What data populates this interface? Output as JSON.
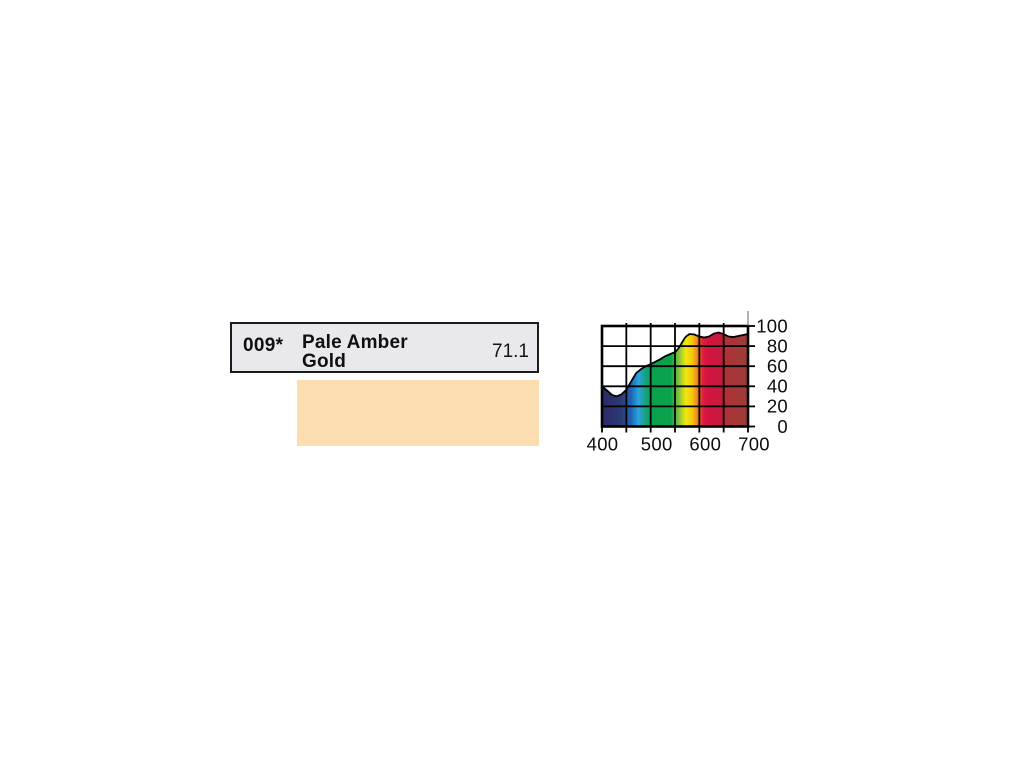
{
  "page": {
    "background": "#ffffff"
  },
  "swatch_card": {
    "code": "009*",
    "name": "Pale Amber Gold",
    "name_lines": [
      "Pale Amber",
      "Gold"
    ],
    "transmission_percent": "71.1",
    "header_background": "#e9e9ed",
    "swatch_color": "#fcddb0"
  },
  "chart_data": {
    "type": "area",
    "x": [
      400,
      410,
      420,
      430,
      440,
      450,
      460,
      470,
      480,
      490,
      500,
      510,
      520,
      530,
      540,
      550,
      555,
      560,
      565,
      570,
      575,
      580,
      590,
      600,
      610,
      620,
      630,
      640,
      650,
      660,
      670,
      680,
      690,
      700
    ],
    "values": [
      40,
      36,
      31.5,
      30,
      32,
      36.5,
      45,
      53,
      57,
      60,
      62,
      64.5,
      67,
      70,
      72,
      74,
      76.5,
      80,
      84,
      88,
      90.5,
      92,
      91.5,
      89.5,
      88.5,
      89.5,
      92.5,
      93.5,
      92,
      89.5,
      89,
      90,
      91,
      92
    ],
    "xlim": [
      400,
      700
    ],
    "ylim": [
      0,
      100
    ],
    "xticks": [
      400,
      500,
      600,
      700
    ],
    "xtick_labels": [
      "400",
      "500",
      "600",
      "700"
    ],
    "xticks_minor": [
      450,
      550,
      650
    ],
    "yticks": [
      0,
      20,
      40,
      60,
      80,
      100
    ],
    "ytick_labels": [
      "0",
      "20",
      "40",
      "60",
      "80",
      "100"
    ],
    "grid": true,
    "legend": false,
    "fill": "spectrum",
    "line_color": "#000000",
    "spectrum_stops": [
      {
        "offset": 0.0,
        "color": "#2b2968"
      },
      {
        "offset": 0.13,
        "color": "#2c3a74"
      },
      {
        "offset": 0.2,
        "color": "#1e66b4"
      },
      {
        "offset": 0.25,
        "color": "#28a5de"
      },
      {
        "offset": 0.3,
        "color": "#17a07c"
      },
      {
        "offset": 0.34,
        "color": "#09a14f"
      },
      {
        "offset": 0.47,
        "color": "#0ba24b"
      },
      {
        "offset": 0.53,
        "color": "#8ec43a"
      },
      {
        "offset": 0.575,
        "color": "#f2e90c"
      },
      {
        "offset": 0.62,
        "color": "#f4c40e"
      },
      {
        "offset": 0.655,
        "color": "#ee7f1d"
      },
      {
        "offset": 0.69,
        "color": "#e02139"
      },
      {
        "offset": 0.72,
        "color": "#d61341"
      },
      {
        "offset": 0.82,
        "color": "#c31b3c"
      },
      {
        "offset": 0.85,
        "color": "#ad3335"
      },
      {
        "offset": 1.0,
        "color": "#9c3d3a"
      }
    ]
  }
}
